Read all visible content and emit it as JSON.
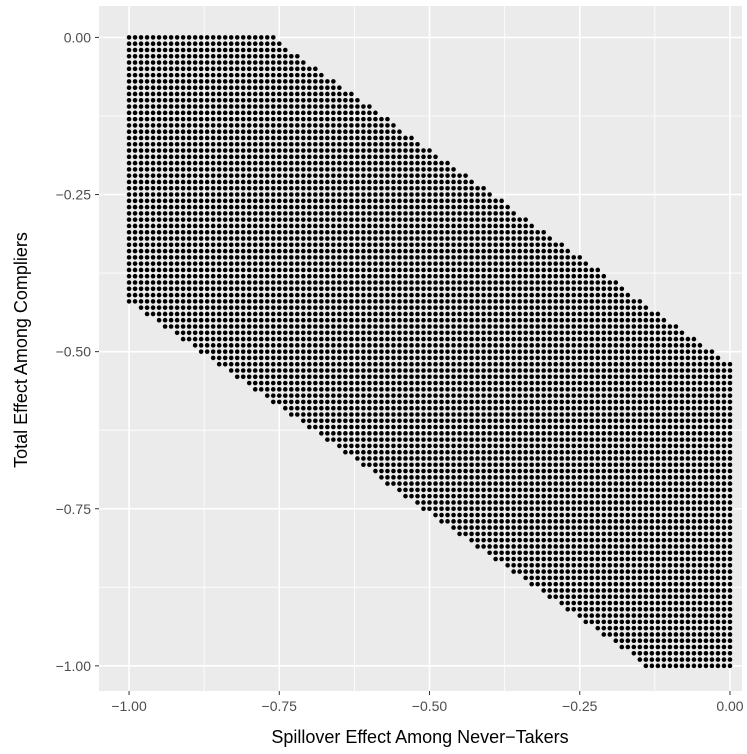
{
  "chart_data": {
    "type": "scatter",
    "title": "",
    "xlabel": "Spillover Effect Among Never−Takers",
    "ylabel": "Total Effect Among Compliers",
    "xlim": [
      -1.05,
      0.02
    ],
    "ylim": [
      -1.04,
      0.05
    ],
    "x_ticks": [
      -1.0,
      -0.75,
      -0.5,
      -0.25,
      0.0
    ],
    "x_tick_labels": [
      "−1.00",
      "−0.75",
      "−0.50",
      "−0.25",
      "0.00"
    ],
    "y_ticks": [
      0.0,
      -0.25,
      -0.5,
      -0.75,
      -1.0
    ],
    "y_tick_labels": [
      "0.00",
      "−0.25",
      "−0.50",
      "−0.75",
      "−1.00"
    ],
    "grid": true,
    "point_color": "#000000",
    "panel_color": "#ebebeb",
    "grid_color": "#ffffff",
    "grid_step": 0.01,
    "region": {
      "description_points": [
        {
          "x": -1.0,
          "y": 0.0
        },
        {
          "x": -0.76,
          "y": 0.0
        },
        {
          "x": 0.0,
          "y": -0.52
        },
        {
          "x": 0.0,
          "y": -1.0
        },
        {
          "x": -0.14,
          "y": -1.0
        },
        {
          "x": -1.0,
          "y": -0.42
        }
      ]
    }
  }
}
